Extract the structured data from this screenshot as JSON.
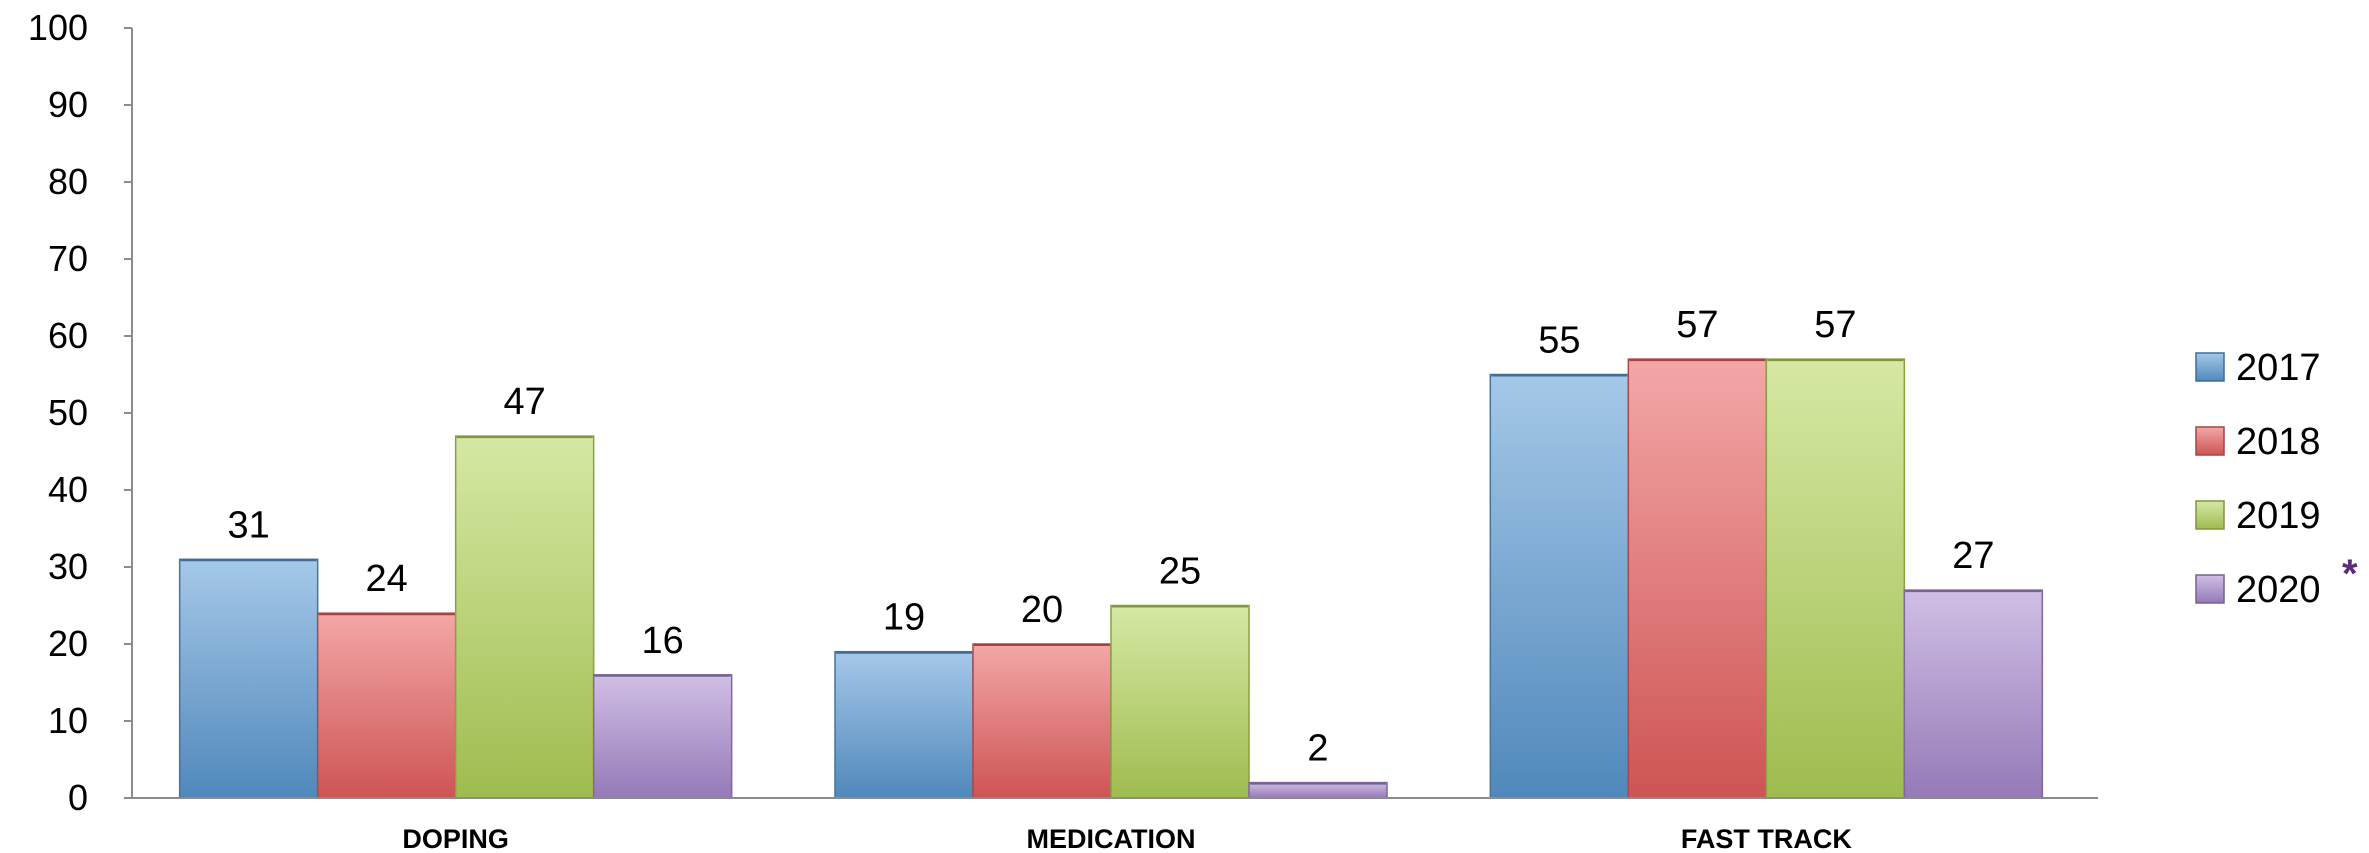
{
  "chart_data": {
    "type": "bar",
    "categories": [
      "DOPING",
      "MEDICATION",
      "FAST TRACK"
    ],
    "series": [
      {
        "name": "2017",
        "values": [
          31,
          19,
          55
        ],
        "color": "#5b9bd5"
      },
      {
        "name": "2018",
        "values": [
          24,
          20,
          57
        ],
        "color": "#ea5f5f"
      },
      {
        "name": "2019",
        "values": [
          47,
          25,
          57
        ],
        "color": "#b5d65a"
      },
      {
        "name": "2020",
        "values": [
          16,
          2,
          27
        ],
        "color": "#a98bd0"
      }
    ],
    "legend_note": "*",
    "ylim": [
      0,
      100
    ],
    "yticks": [
      "0",
      "10",
      "20",
      "30",
      "40",
      "50",
      "60",
      "70",
      "80",
      "90",
      "100"
    ],
    "grid": false,
    "legend_position": "right",
    "data_labels": true
  }
}
